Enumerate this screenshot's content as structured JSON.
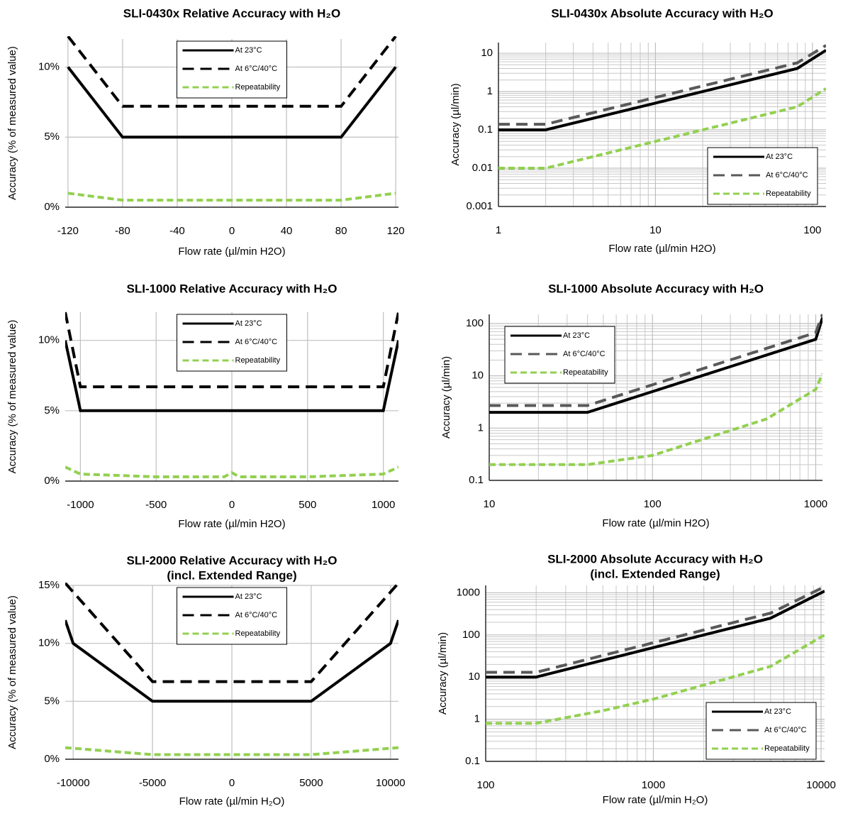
{
  "chart_data": [
    {
      "type": "line",
      "title": "SLI-0430x Relative Accuracy with H₂O",
      "xlabel": "Flow rate (µl/min H2O)",
      "ylabel": "Accuracy (% of measured value)",
      "xlim": [
        -122,
        122
      ],
      "xticks": [
        -120,
        -80,
        -40,
        0,
        40,
        80,
        120
      ],
      "ylim": [
        0,
        12
      ],
      "yticks": [
        {
          "value": 0,
          "label": "0%"
        },
        {
          "value": 5,
          "label": "5%"
        },
        {
          "value": 10,
          "label": "10%"
        }
      ],
      "grid": true,
      "legend": "top",
      "series": [
        {
          "name": "At 23°C",
          "color": "#000000",
          "dash": "solid",
          "x": [
            -120,
            -80,
            80,
            120
          ],
          "values": [
            10,
            5,
            5,
            10
          ]
        },
        {
          "name": "At 6°C/40°C",
          "color": "#000000",
          "dash": "dashed",
          "x": [
            -120,
            -80,
            80,
            120
          ],
          "values": [
            12.2,
            7.2,
            7.2,
            12.2
          ]
        },
        {
          "name": "Repeatability",
          "color": "#92d050",
          "dash": "dotted",
          "x": [
            -120,
            -80,
            80,
            120
          ],
          "values": [
            1,
            0.5,
            0.5,
            1
          ]
        }
      ]
    },
    {
      "type": "line",
      "title": "SLI-0430x Absolute Accuracy with H₂O",
      "xlabel": "Flow rate (µl/min H2O)",
      "ylabel": "Accuracy (µl/min)",
      "xlog": true,
      "ylog": true,
      "xlim": [
        1,
        122
      ],
      "xticks": [
        1,
        10,
        100
      ],
      "ylim": [
        0.001,
        19
      ],
      "yticks": [
        0.001,
        0.01,
        0.1,
        1,
        10
      ],
      "grid": true,
      "legend": "bottom-right",
      "series": [
        {
          "name": "At 23°C",
          "color": "#000000",
          "dash": "solid",
          "x": [
            1,
            2,
            80,
            122
          ],
          "values": [
            0.1,
            0.1,
            4,
            12
          ]
        },
        {
          "name": "At 6°C/40°C",
          "color": "#595959",
          "dash": "dashed",
          "x": [
            1,
            2,
            80,
            122
          ],
          "values": [
            0.14,
            0.14,
            5.6,
            16
          ]
        },
        {
          "name": "Repeatability",
          "color": "#92d050",
          "dash": "dotted",
          "x": [
            1,
            2,
            80,
            122
          ],
          "values": [
            0.01,
            0.01,
            0.4,
            1.2
          ]
        }
      ]
    },
    {
      "type": "line",
      "title": "SLI-1000 Relative Accuracy with H₂O",
      "xlabel": "Flow rate (µl/min H2O)",
      "ylabel": "Accuracy (% of measured value)",
      "xlim": [
        -1100,
        1100
      ],
      "xticks": [
        -1000,
        -500,
        0,
        500,
        1000
      ],
      "ylim": [
        0,
        12
      ],
      "yticks": [
        {
          "value": 0,
          "label": "0%"
        },
        {
          "value": 5,
          "label": "5%"
        },
        {
          "value": 10,
          "label": "10%"
        }
      ],
      "grid": true,
      "legend": "top",
      "series": [
        {
          "name": "At 23°C",
          "color": "#000000",
          "dash": "solid",
          "x": [
            -1100,
            -1000,
            1000,
            1100
          ],
          "values": [
            10,
            5,
            5,
            10
          ]
        },
        {
          "name": "At 6°C/40°C",
          "color": "#000000",
          "dash": "dashed",
          "x": [
            -1100,
            -1000,
            1000,
            1100
          ],
          "values": [
            12,
            6.7,
            6.7,
            12
          ]
        },
        {
          "name": "Repeatability",
          "color": "#92d050",
          "dash": "dotted",
          "x": [
            -1100,
            -1000,
            -500,
            -50,
            0,
            50,
            500,
            1000,
            1100
          ],
          "values": [
            1,
            0.5,
            0.3,
            0.3,
            0.6,
            0.3,
            0.3,
            0.5,
            1
          ]
        }
      ]
    },
    {
      "type": "line",
      "title": "SLI-1000 Absolute Accuracy with H₂O",
      "xlabel": "Flow rate (µl/min H2O)",
      "ylabel": "Accuracy (µl/min)",
      "xlog": true,
      "ylog": true,
      "xlim": [
        10,
        1100
      ],
      "xticks": [
        10,
        100,
        1000
      ],
      "ylim": [
        0.1,
        150
      ],
      "yticks": [
        0.1,
        1,
        10,
        100
      ],
      "grid": true,
      "legend": "top-left",
      "series": [
        {
          "name": "At 23°C",
          "color": "#000000",
          "dash": "solid",
          "x": [
            10,
            40,
            1000,
            1100
          ],
          "values": [
            2,
            2,
            50,
            130
          ]
        },
        {
          "name": "At 6°C/40°C",
          "color": "#595959",
          "dash": "dashed",
          "x": [
            10,
            40,
            1000,
            1100
          ],
          "values": [
            2.7,
            2.7,
            67,
            150
          ]
        },
        {
          "name": "Repeatability",
          "color": "#92d050",
          "dash": "dotted",
          "x": [
            10,
            40,
            100,
            500,
            1000,
            1100
          ],
          "values": [
            0.2,
            0.2,
            0.3,
            1.5,
            5.5,
            11
          ]
        }
      ]
    },
    {
      "type": "line",
      "title": "SLI-2000 Relative Accuracy with H₂O",
      "subtitle": "(incl. Extended Range)",
      "xlabel": "Flow rate (µl/min H₂O)",
      "ylabel": "Accuracy (% of measured value)",
      "xlim": [
        -10500,
        10500
      ],
      "xticks": [
        -10000,
        -5000,
        0,
        5000,
        10000
      ],
      "ylim": [
        0,
        15
      ],
      "yticks": [
        {
          "value": 0,
          "label": "0%"
        },
        {
          "value": 5,
          "label": "5%"
        },
        {
          "value": 10,
          "label": "10%"
        },
        {
          "value": 15,
          "label": "15%"
        }
      ],
      "grid": true,
      "legend": "top",
      "series": [
        {
          "name": "At 23°C",
          "color": "#000000",
          "dash": "solid",
          "x": [
            -10500,
            -10000,
            -5000,
            5000,
            10000,
            10500
          ],
          "values": [
            12,
            10,
            5,
            5,
            10,
            12
          ]
        },
        {
          "name": "At 6°C/40°C",
          "color": "#000000",
          "dash": "dashed",
          "x": [
            -10500,
            -5000,
            5000,
            10500
          ],
          "values": [
            15.2,
            6.7,
            6.7,
            15.2
          ]
        },
        {
          "name": "Repeatability",
          "color": "#92d050",
          "dash": "dotted",
          "x": [
            -10500,
            -5000,
            5000,
            10500
          ],
          "values": [
            1,
            0.4,
            0.4,
            1
          ]
        }
      ]
    },
    {
      "type": "line",
      "title": "SLI-2000 Absolute Accuracy with H₂O",
      "subtitle": "(incl. Extended Range)",
      "xlabel": "Flow rate (µl/min H₂O)",
      "ylabel": "Accuracy (µl/min)",
      "xlog": true,
      "ylog": true,
      "xlim": [
        100,
        10500
      ],
      "xticks": [
        100,
        1000,
        10000
      ],
      "ylim": [
        0.1,
        1500
      ],
      "yticks": [
        0.1,
        1,
        10,
        100,
        1000
      ],
      "grid": true,
      "legend": "bottom-right",
      "series": [
        {
          "name": "At 23°C",
          "color": "#000000",
          "dash": "solid",
          "x": [
            100,
            200,
            5000,
            10500
          ],
          "values": [
            10,
            10,
            250,
            1100
          ]
        },
        {
          "name": "At 6°C/40°C",
          "color": "#595959",
          "dash": "dashed",
          "x": [
            100,
            200,
            5000,
            10500
          ],
          "values": [
            13,
            13,
            330,
            1400
          ]
        },
        {
          "name": "Repeatability",
          "color": "#92d050",
          "dash": "dotted",
          "x": [
            100,
            200,
            500,
            1000,
            5000,
            10500
          ],
          "values": [
            0.8,
            0.8,
            1.6,
            3,
            18,
            100
          ]
        }
      ]
    }
  ]
}
